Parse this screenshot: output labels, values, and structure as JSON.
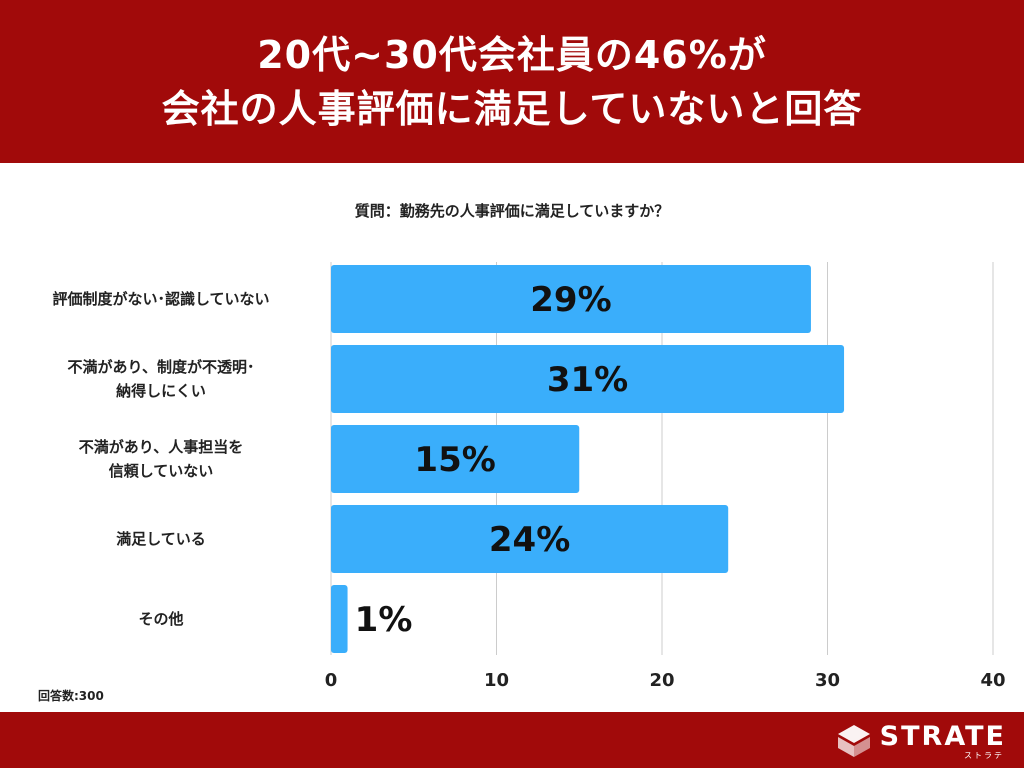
{
  "header": {
    "title_line1": "20代~30代会社員の46%が",
    "title_line2": "会社の人事評価に満足していないと回答"
  },
  "question": "質問：勤務先の人事評価に満足していますか？",
  "footnote": "回答数:300",
  "logo": {
    "text": "STRATE",
    "kana": "ストラテ"
  },
  "colors": {
    "header_bg": "#a10a0a",
    "bar": "#3aaefb",
    "grid": "#cccccc",
    "value_label": "#111111"
  },
  "chart_data": {
    "type": "bar",
    "orientation": "horizontal",
    "title": "質問：勤務先の人事評価に満足していますか？",
    "categories": [
      "評価制度がない･認識していない",
      "不満があり、制度が不透明･\n納得しにくい",
      "不満があり、人事担当を\n信頼していない",
      "満足している",
      "その他"
    ],
    "values": [
      29,
      31,
      15,
      24,
      1
    ],
    "value_labels": [
      "29%",
      "31%",
      "15%",
      "24%",
      "1%"
    ],
    "xlim": [
      0,
      40
    ],
    "xticks": [
      0,
      10,
      20,
      30,
      40
    ],
    "grid": true,
    "legend": "none"
  }
}
